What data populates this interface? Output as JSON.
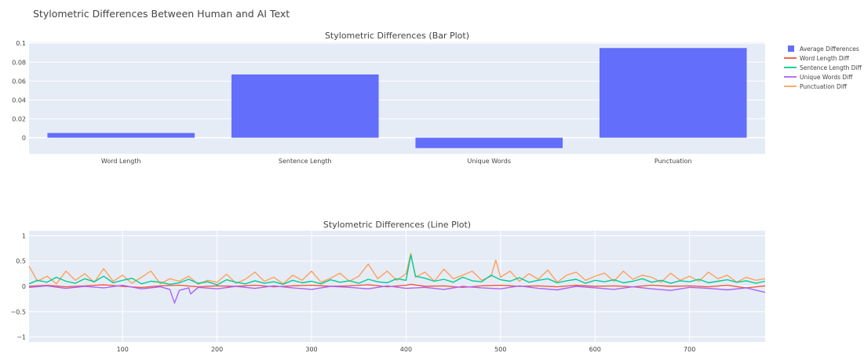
{
  "figure": {
    "title": "Stylometric Differences Between Human and AI Text"
  },
  "legend": {
    "position": "top-right",
    "entries": [
      {
        "name": "Average Differences",
        "color": "#636efa",
        "symbol": "square"
      },
      {
        "name": "Word Length Diff",
        "color": "#ef553b",
        "symbol": "line"
      },
      {
        "name": "Sentence Length Diff",
        "color": "#00cc96",
        "symbol": "line"
      },
      {
        "name": "Unique Words Diff",
        "color": "#ab63fa",
        "symbol": "line"
      },
      {
        "name": "Punctuation Diff",
        "color": "#ffa15a",
        "symbol": "line"
      }
    ]
  },
  "chart_data": [
    {
      "type": "bar",
      "title": "Stylometric Differences (Bar Plot)",
      "categories": [
        "Word Length",
        "Sentence Length",
        "Unique Words",
        "Punctuation"
      ],
      "series": [
        {
          "name": "Average Differences",
          "color": "#636efa",
          "values": [
            0.005,
            0.067,
            -0.011,
            0.095
          ]
        }
      ],
      "ylim": [
        -0.017,
        0.101
      ],
      "yticks": [
        0,
        0.02,
        0.04,
        0.06,
        0.08,
        0.1
      ],
      "ytick_labels": [
        "0",
        "0.02",
        "0.04",
        "0.06",
        "0.08",
        "0.1"
      ],
      "grid": true
    },
    {
      "type": "line",
      "title": "Stylometric Differences (Line Plot)",
      "xlim": [
        1,
        780
      ],
      "ylim": [
        -1.1,
        1.1
      ],
      "xticks": [
        100,
        200,
        300,
        400,
        500,
        600,
        700
      ],
      "xtick_labels": [
        "100",
        "200",
        "300",
        "400",
        "500",
        "600",
        "700"
      ],
      "yticks": [
        -1,
        -0.5,
        0,
        0.5,
        1
      ],
      "ytick_labels": [
        "−1",
        "−0.5",
        "0",
        "0.5",
        "1"
      ],
      "grid": true,
      "series": [
        {
          "name": "Word Length Diff",
          "color": "#ef553b",
          "x": [
            1,
            20,
            40,
            60,
            80,
            100,
            120,
            140,
            160,
            180,
            200,
            220,
            240,
            260,
            280,
            300,
            320,
            340,
            360,
            380,
            400,
            405,
            420,
            440,
            460,
            480,
            500,
            520,
            540,
            560,
            580,
            600,
            620,
            640,
            660,
            680,
            700,
            720,
            740,
            760,
            780
          ],
          "y": [
            0,
            0.02,
            -0.01,
            0.01,
            0.03,
            0,
            -0.02,
            0.01,
            0.02,
            -0.01,
            0.01,
            0,
            0.02,
            -0.01,
            0.01,
            0.02,
            0,
            0.01,
            0.03,
            -0.01,
            0.02,
            0.04,
            0,
            0.01,
            -0.02,
            0.01,
            0.02,
            0,
            0.01,
            -0.01,
            0.02,
            0,
            0.01,
            -0.01,
            0.02,
            0,
            0.01,
            -0.01,
            0.02,
            -0.03,
            0.01
          ]
        },
        {
          "name": "Sentence Length Diff",
          "color": "#00cc96",
          "x": [
            1,
            10,
            20,
            30,
            40,
            50,
            60,
            70,
            80,
            90,
            100,
            110,
            120,
            130,
            140,
            150,
            160,
            170,
            180,
            190,
            200,
            210,
            220,
            230,
            240,
            250,
            260,
            270,
            280,
            290,
            300,
            310,
            320,
            330,
            340,
            350,
            360,
            370,
            380,
            390,
            400,
            405,
            410,
            420,
            430,
            440,
            450,
            460,
            470,
            480,
            490,
            500,
            510,
            520,
            530,
            540,
            550,
            560,
            570,
            580,
            590,
            600,
            610,
            620,
            630,
            640,
            650,
            660,
            670,
            680,
            690,
            700,
            710,
            720,
            730,
            740,
            750,
            760,
            770,
            780
          ],
          "y": [
            0.05,
            0.12,
            0.08,
            0.18,
            0.1,
            0.06,
            0.15,
            0.09,
            0.2,
            0.07,
            0.12,
            0.16,
            0.05,
            0.1,
            0.08,
            0.04,
            0.07,
            0.14,
            0.06,
            0.09,
            0.03,
            0.13,
            0.08,
            0.05,
            0.11,
            0.06,
            0.09,
            0.04,
            0.12,
            0.07,
            0.1,
            0.05,
            0.13,
            0.08,
            0.11,
            0.06,
            0.14,
            0.09,
            0.07,
            0.15,
            0.12,
            0.62,
            0.2,
            0.16,
            0.1,
            0.14,
            0.08,
            0.18,
            0.11,
            0.09,
            0.22,
            0.13,
            0.1,
            0.17,
            0.08,
            0.12,
            0.15,
            0.07,
            0.11,
            0.14,
            0.06,
            0.12,
            0.09,
            0.13,
            0.07,
            0.1,
            0.15,
            0.08,
            0.12,
            0.06,
            0.11,
            0.09,
            0.14,
            0.07,
            0.1,
            0.13,
            0.08,
            0.11,
            0.06,
            0.1
          ]
        },
        {
          "name": "Unique Words Diff",
          "color": "#ab63fa",
          "x": [
            1,
            20,
            40,
            60,
            80,
            100,
            120,
            140,
            150,
            155,
            160,
            170,
            172,
            180,
            200,
            220,
            240,
            260,
            280,
            300,
            320,
            340,
            360,
            380,
            400,
            420,
            440,
            460,
            480,
            500,
            520,
            540,
            560,
            580,
            600,
            620,
            640,
            660,
            680,
            700,
            720,
            740,
            760,
            780
          ],
          "y": [
            -0.02,
            0.01,
            -0.04,
            0,
            -0.03,
            0.02,
            -0.05,
            -0.01,
            -0.06,
            -0.33,
            -0.08,
            -0.03,
            -0.15,
            -0.02,
            -0.05,
            0,
            -0.04,
            0.01,
            -0.03,
            -0.06,
            0,
            -0.02,
            -0.05,
            0.01,
            -0.04,
            -0.02,
            -0.06,
            0,
            -0.03,
            -0.05,
            0.01,
            -0.04,
            -0.07,
            0,
            -0.03,
            -0.06,
            -0.01,
            -0.05,
            -0.08,
            -0.02,
            -0.04,
            -0.07,
            -0.03,
            -0.12
          ]
        },
        {
          "name": "Punctuation Diff",
          "color": "#ffa15a",
          "x": [
            1,
            10,
            20,
            30,
            40,
            50,
            60,
            70,
            80,
            90,
            100,
            110,
            120,
            130,
            140,
            150,
            160,
            170,
            180,
            190,
            200,
            210,
            220,
            230,
            240,
            250,
            260,
            270,
            280,
            290,
            300,
            310,
            320,
            330,
            340,
            350,
            360,
            370,
            380,
            390,
            400,
            405,
            410,
            420,
            430,
            440,
            450,
            460,
            470,
            480,
            490,
            495,
            500,
            510,
            520,
            530,
            540,
            550,
            560,
            570,
            580,
            590,
            600,
            610,
            620,
            630,
            640,
            650,
            660,
            670,
            680,
            690,
            700,
            710,
            720,
            730,
            740,
            750,
            760,
            770,
            780
          ],
          "y": [
            0.4,
            0.1,
            0.2,
            0.05,
            0.3,
            0.12,
            0.25,
            0.08,
            0.35,
            0.1,
            0.22,
            0.06,
            0.18,
            0.3,
            0.05,
            0.15,
            0.1,
            0.2,
            0.04,
            0.12,
            0.08,
            0.24,
            0.06,
            0.14,
            0.28,
            0.1,
            0.18,
            0.05,
            0.22,
            0.12,
            0.3,
            0.08,
            0.16,
            0.26,
            0.1,
            0.2,
            0.44,
            0.15,
            0.3,
            0.12,
            0.25,
            0.65,
            0.18,
            0.28,
            0.1,
            0.34,
            0.15,
            0.22,
            0.3,
            0.12,
            0.2,
            0.52,
            0.18,
            0.3,
            0.1,
            0.25,
            0.14,
            0.32,
            0.08,
            0.22,
            0.28,
            0.12,
            0.2,
            0.26,
            0.1,
            0.3,
            0.14,
            0.22,
            0.18,
            0.08,
            0.26,
            0.12,
            0.2,
            0.1,
            0.28,
            0.15,
            0.22,
            0.08,
            0.18,
            0.12,
            0.15
          ]
        }
      ]
    }
  ]
}
